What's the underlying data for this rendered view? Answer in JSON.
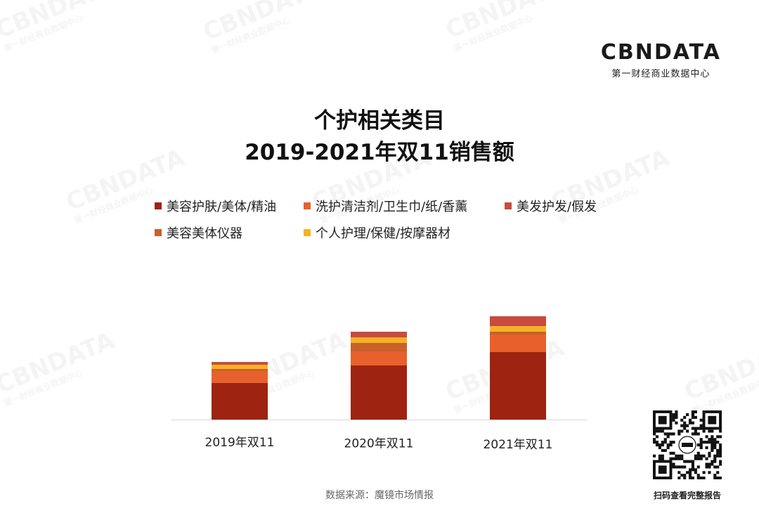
{
  "logo": {
    "main": "CBNDATA",
    "sub": "第一财经商业数据中心"
  },
  "watermark": {
    "text": "CBNDATA",
    "sub": "第一财经商业数据中心"
  },
  "source": "数据来源：魔镜市场情报",
  "qr_label": "扫码查看完整报告",
  "chart_data": {
    "type": "bar",
    "stacked": true,
    "title": [
      "个护相关类目",
      "2019-2021年双11销售额"
    ],
    "xlabel": "",
    "ylabel": "",
    "categories": [
      "2019年双11",
      "2020年双11",
      "2021年双11"
    ],
    "series": [
      {
        "name": "美容护肤/美体/精油",
        "color": "#9e2310",
        "values": [
          52,
          77,
          96
        ]
      },
      {
        "name": "洗护清洁剂/卫生巾/纸/香薰",
        "color": "#e8602c",
        "values": [
          17,
          20,
          25
        ]
      },
      {
        "name": "美容美体仪器",
        "color": "#c8612a",
        "values": [
          3,
          12,
          4
        ]
      },
      {
        "name": "个人护理/保健/按摩器材",
        "color": "#f3b323",
        "values": [
          6,
          8,
          8
        ]
      },
      {
        "name": "美发护发/假发",
        "color": "#c94b3e",
        "values": [
          4,
          8,
          14
        ]
      }
    ],
    "legend_position": "top",
    "axis_visible": false,
    "grid": false
  }
}
